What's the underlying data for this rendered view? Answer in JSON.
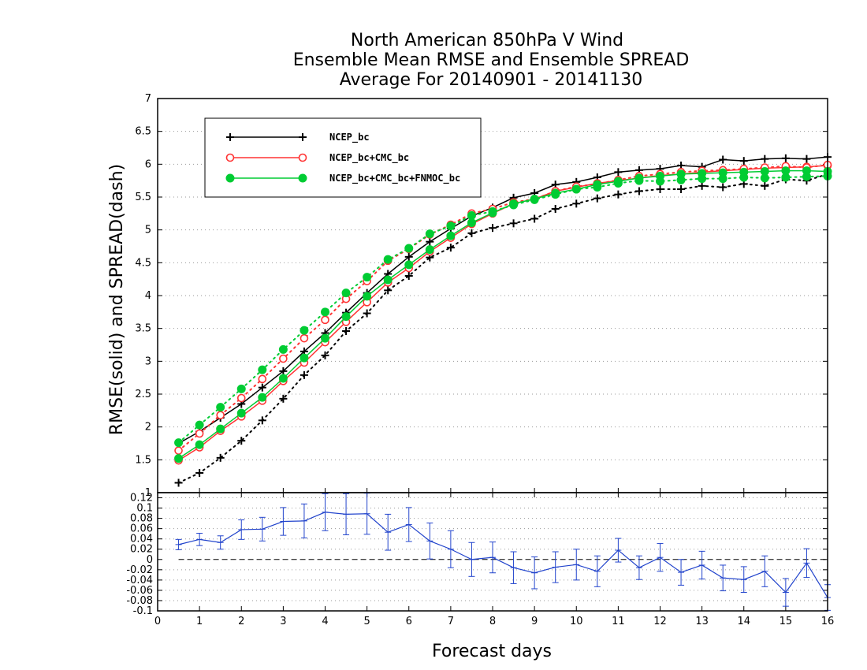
{
  "chart_data": [
    {
      "type": "line",
      "title": [
        "North American 850hPa V Wind",
        "Ensemble Mean RMSE and Ensemble SPREAD",
        "Average For 20140901 - 20141130"
      ],
      "xlabel": "Forecast days",
      "ylabel": "RMSE(solid) and SPREAD(dash)",
      "xlim": [
        0,
        16
      ],
      "ylim": [
        1,
        7
      ],
      "x_ticks": [
        "0",
        "1",
        "2",
        "3",
        "4",
        "5",
        "6",
        "7",
        "8",
        "9",
        "10",
        "11",
        "12",
        "13",
        "14",
        "15",
        "16"
      ],
      "y_ticks": [
        "1",
        "1.5",
        "2",
        "2.5",
        "3",
        "3.5",
        "4",
        "4.5",
        "5",
        "5.5",
        "6",
        "6.5",
        "7"
      ],
      "grid": true,
      "legend": "top-left",
      "x": [
        0.5,
        1,
        1.5,
        2,
        2.5,
        3,
        3.5,
        4,
        4.5,
        5,
        5.5,
        6,
        6.5,
        7,
        7.5,
        8,
        8.5,
        9,
        9.5,
        10,
        10.5,
        11,
        11.5,
        12,
        12.5,
        13,
        13.5,
        14,
        14.5,
        15,
        15.5,
        16
      ],
      "series": [
        {
          "name": "NCEP_bc",
          "color": "#000000",
          "marker": "plus",
          "rmse": [
            1.75,
            1.93,
            2.14,
            2.35,
            2.6,
            2.85,
            3.15,
            3.43,
            3.74,
            4.04,
            4.33,
            4.59,
            4.82,
            5.02,
            5.21,
            5.34,
            5.49,
            5.56,
            5.69,
            5.73,
            5.8,
            5.88,
            5.91,
            5.93,
            5.98,
            5.96,
            6.07,
            6.05,
            6.08,
            6.09,
            6.08,
            6.11
          ],
          "spread": [
            1.15,
            1.3,
            1.53,
            1.79,
            2.1,
            2.43,
            2.79,
            3.09,
            3.46,
            3.73,
            4.08,
            4.3,
            4.58,
            4.73,
            4.95,
            5.03,
            5.1,
            5.17,
            5.32,
            5.4,
            5.48,
            5.54,
            5.59,
            5.62,
            5.62,
            5.67,
            5.65,
            5.7,
            5.67,
            5.77,
            5.75,
            5.85
          ]
        },
        {
          "name": "NCEP_bc+CMC_bc",
          "color": "#ff3333",
          "marker": "open-circle",
          "rmse": [
            1.49,
            1.69,
            1.94,
            2.16,
            2.4,
            2.7,
            2.98,
            3.29,
            3.6,
            3.9,
            4.2,
            4.42,
            4.67,
            4.88,
            5.09,
            5.25,
            5.4,
            5.47,
            5.59,
            5.65,
            5.71,
            5.75,
            5.79,
            5.83,
            5.85,
            5.88,
            5.9,
            5.92,
            5.94,
            5.95,
            5.96,
            5.98
          ],
          "spread": [
            1.64,
            1.9,
            2.18,
            2.44,
            2.73,
            3.04,
            3.35,
            3.63,
            3.95,
            4.22,
            4.53,
            4.71,
            4.93,
            5.08,
            5.25,
            5.32,
            5.42,
            5.47,
            5.59,
            5.66,
            5.7,
            5.76,
            5.82,
            5.85,
            5.88,
            5.9,
            5.91,
            5.93,
            5.95,
            5.97,
            5.95,
            5.99
          ]
        },
        {
          "name": "NCEP_bc+CMC_bc+FNMOC_bc",
          "color": "#00cc33",
          "marker": "filled-circle",
          "rmse": [
            1.52,
            1.73,
            1.97,
            2.21,
            2.45,
            2.74,
            3.05,
            3.35,
            3.68,
            3.99,
            4.24,
            4.47,
            4.7,
            4.91,
            5.11,
            5.26,
            5.4,
            5.47,
            5.56,
            5.62,
            5.69,
            5.74,
            5.79,
            5.82,
            5.85,
            5.86,
            5.87,
            5.88,
            5.89,
            5.9,
            5.9,
            5.89
          ],
          "spread": [
            1.76,
            2.03,
            2.3,
            2.58,
            2.87,
            3.18,
            3.47,
            3.75,
            4.04,
            4.28,
            4.55,
            4.72,
            4.94,
            5.06,
            5.22,
            5.28,
            5.38,
            5.46,
            5.54,
            5.62,
            5.65,
            5.71,
            5.75,
            5.74,
            5.76,
            5.78,
            5.78,
            5.8,
            5.79,
            5.8,
            5.81,
            5.82
          ]
        }
      ]
    },
    {
      "type": "line",
      "xlabel": "Forecast days",
      "xlim": [
        0,
        16
      ],
      "ylim": [
        -0.1,
        0.13
      ],
      "x_ticks": [
        "0",
        "1",
        "2",
        "3",
        "4",
        "5",
        "6",
        "7",
        "8",
        "9",
        "10",
        "11",
        "12",
        "13",
        "14",
        "15",
        "16"
      ],
      "y_ticks": [
        "-0.1",
        "-0.08",
        "-0.06",
        "-0.04",
        "-0.02",
        "0",
        "0.02",
        "0.04",
        "0.06",
        "0.08",
        "0.1",
        "0.12"
      ],
      "grid": true,
      "zero_line": true,
      "series": [
        {
          "color": "#2244cc",
          "x": [
            0.5,
            1,
            1.5,
            2,
            2.5,
            3,
            3.5,
            4,
            4.5,
            5,
            5.5,
            6,
            6.5,
            7,
            7.5,
            8,
            8.5,
            9,
            9.5,
            10,
            10.5,
            11,
            11.5,
            12,
            12.5,
            13,
            13.5,
            14,
            14.5,
            15,
            15.5,
            16
          ],
          "values": [
            0.029,
            0.039,
            0.033,
            0.058,
            0.059,
            0.074,
            0.075,
            0.092,
            0.088,
            0.089,
            0.053,
            0.068,
            0.036,
            0.02,
            0.0,
            0.004,
            -0.016,
            -0.026,
            -0.015,
            -0.01,
            -0.023,
            0.018,
            -0.016,
            0.004,
            -0.025,
            -0.011,
            -0.036,
            -0.039,
            -0.023,
            -0.064,
            -0.007,
            -0.074
          ],
          "error": [
            0.01,
            0.012,
            0.013,
            0.019,
            0.023,
            0.027,
            0.033,
            0.036,
            0.04,
            0.04,
            0.035,
            0.033,
            0.035,
            0.036,
            0.033,
            0.03,
            0.031,
            0.031,
            0.03,
            0.03,
            0.03,
            0.023,
            0.023,
            0.027,
            0.025,
            0.027,
            0.025,
            0.025,
            0.03,
            0.027,
            0.028,
            0.025
          ]
        }
      ]
    }
  ]
}
